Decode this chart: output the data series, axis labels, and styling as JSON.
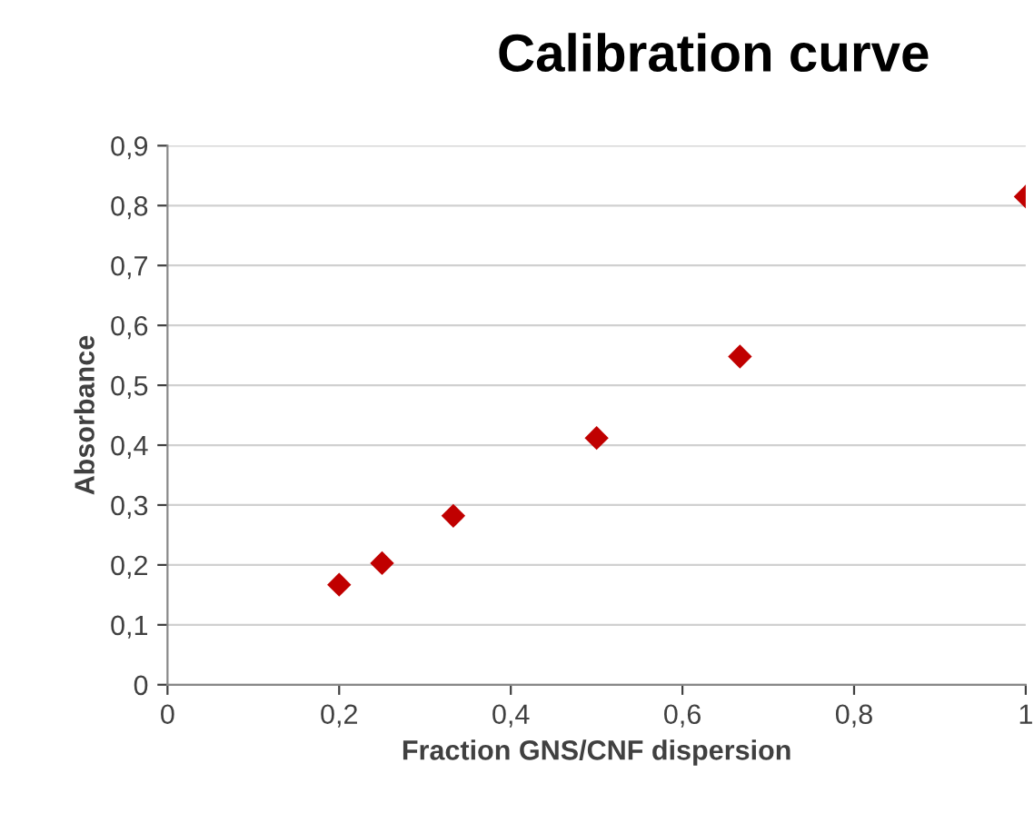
{
  "chart_data": {
    "type": "scatter",
    "title": "Calibration curve",
    "xlabel": "Fraction GNS/CNF dispersion",
    "ylabel": "Absorbance",
    "x": [
      0.2,
      0.25,
      0.333,
      0.5,
      0.667,
      1
    ],
    "series": [
      {
        "color": "#c00000",
        "values": [
          0.167,
          0.203,
          0.282,
          0.412,
          0.548,
          0.815
        ]
      }
    ],
    "xlim": [
      0,
      1
    ],
    "ylim": [
      0,
      0.9
    ],
    "xticks": [
      0,
      {
        "value": 0.2,
        "label": "0,2"
      },
      {
        "value": 0.4,
        "label": "0,4"
      },
      {
        "value": 0.6,
        "label": "0,6"
      },
      {
        "value": 0.8,
        "label": "0,8"
      },
      1
    ],
    "yticks": [
      0,
      {
        "value": 0.1,
        "label": "0,1"
      },
      {
        "value": 0.2,
        "label": "0,2"
      },
      {
        "value": 0.3,
        "label": "0,3"
      },
      {
        "value": 0.4,
        "label": "0,4"
      },
      {
        "value": 0.5,
        "label": "0,5"
      },
      {
        "value": 0.6,
        "label": "0,6"
      },
      {
        "value": 0.7,
        "label": "0,7"
      },
      {
        "value": 0.8,
        "label": "0,8"
      },
      {
        "value": 0.9,
        "label": "0,9"
      }
    ],
    "grid": "y",
    "marker": "diamond",
    "legend": false
  }
}
